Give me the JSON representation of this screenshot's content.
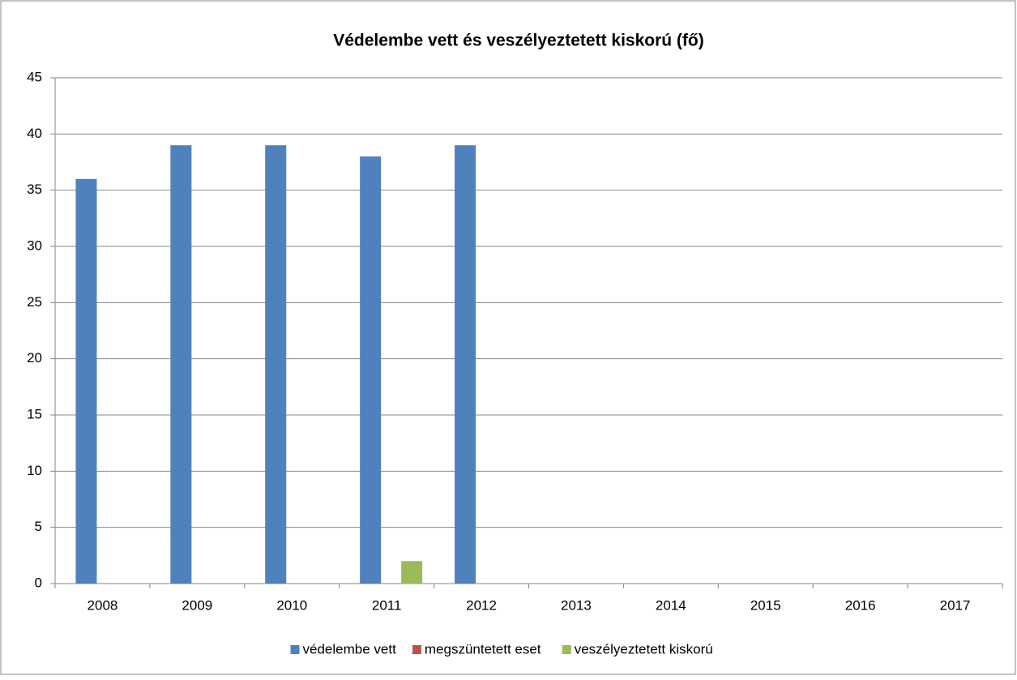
{
  "chart_data": {
    "type": "bar",
    "title": "Védelembe vett és veszélyeztetett kiskorú (fő)",
    "categories": [
      "2008",
      "2009",
      "2010",
      "2011",
      "2012",
      "2013",
      "2014",
      "2015",
      "2016",
      "2017"
    ],
    "series": [
      {
        "name": "védelembe vett",
        "color": "#4f81bd",
        "values": [
          36,
          39,
          39,
          38,
          39,
          null,
          null,
          null,
          null,
          null
        ]
      },
      {
        "name": "megszüntetett eset",
        "color": "#c0504d",
        "values": [
          0,
          0,
          0,
          0,
          0,
          null,
          null,
          null,
          null,
          null
        ]
      },
      {
        "name": "veszélyeztetett kiskorú",
        "color": "#9bbb59",
        "values": [
          0,
          0,
          0,
          2,
          0,
          null,
          null,
          null,
          null,
          null
        ]
      }
    ],
    "ylim": [
      0,
      45
    ],
    "yticks": [
      0,
      5,
      10,
      15,
      20,
      25,
      30,
      35,
      40,
      45
    ],
    "grid": true,
    "legend": "bottom"
  }
}
